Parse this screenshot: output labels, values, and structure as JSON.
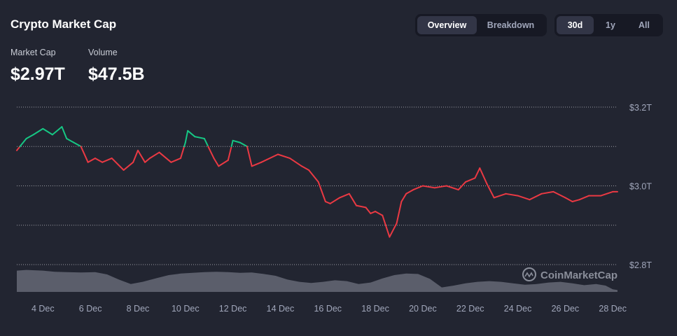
{
  "header": {
    "title": "Crypto Market Cap",
    "view_tabs": [
      {
        "label": "Overview",
        "active": true
      },
      {
        "label": "Breakdown",
        "active": false
      }
    ],
    "range_tabs": [
      {
        "label": "30d",
        "active": true
      },
      {
        "label": "1y",
        "active": false
      },
      {
        "label": "All",
        "active": false
      }
    ]
  },
  "stats": {
    "market_cap_label": "Market Cap",
    "market_cap_value": "$2.97T",
    "volume_label": "Volume",
    "volume_value": "$47.5B"
  },
  "watermark": "CoinMarketCap",
  "colors": {
    "background": "#222531",
    "up": "#16c784",
    "down": "#ea3943",
    "volume": "#8a8e9a",
    "grid": "#ffffff"
  },
  "chart_data": {
    "type": "line",
    "xlabel": "",
    "ylabel": "",
    "x_tick_labels": [
      "4 Dec",
      "6 Dec",
      "8 Dec",
      "10 Dec",
      "12 Dec",
      "14 Dec",
      "16 Dec",
      "18 Dec",
      "20 Dec",
      "22 Dec",
      "24 Dec",
      "26 Dec",
      "28 Dec"
    ],
    "y_tick_labels": [
      "$3.2T",
      "$3.0T",
      "$2.8T"
    ],
    "y_ticks": [
      3.2,
      3.0,
      2.8
    ],
    "xlim": [
      2.9,
      28.2
    ],
    "ylim": [
      2.8,
      3.2
    ],
    "baseline": 3.1,
    "y_unit": "T USD",
    "grid": "dotted horizontal",
    "series": [
      {
        "x": [
          2.9,
          3.3,
          3.6,
          4.0,
          4.4,
          4.8,
          5.0,
          5.3,
          5.6,
          5.9,
          6.2,
          6.5,
          6.9,
          7.4,
          7.8,
          8.0,
          8.1,
          8.3,
          8.5,
          8.9,
          9.4,
          9.8,
          10.0,
          10.1,
          10.4,
          10.8,
          11.2,
          11.4,
          11.8,
          12.0,
          12.3,
          12.6,
          12.8,
          13.2,
          13.9,
          14.4,
          14.9,
          15.2,
          15.6,
          15.9,
          16.1,
          16.5,
          16.9,
          17.2,
          17.6,
          17.8,
          18.0,
          18.3,
          18.6,
          18.9,
          19.1,
          19.3,
          19.6,
          20.0,
          20.5,
          21.0,
          21.5,
          21.8,
          22.2,
          22.4,
          22.7,
          23.0,
          23.5,
          24.0,
          24.5,
          25.0,
          25.5,
          26.0,
          26.3,
          26.6,
          27.0,
          27.5,
          28.0,
          28.2
        ],
        "y": [
          3.09,
          3.12,
          3.13,
          3.145,
          3.13,
          3.15,
          3.12,
          3.11,
          3.1,
          3.06,
          3.07,
          3.06,
          3.07,
          3.04,
          3.06,
          3.09,
          3.08,
          3.06,
          3.07,
          3.085,
          3.06,
          3.07,
          3.11,
          3.14,
          3.125,
          3.12,
          3.07,
          3.05,
          3.065,
          3.115,
          3.11,
          3.1,
          3.05,
          3.06,
          3.08,
          3.07,
          3.05,
          3.04,
          3.01,
          2.96,
          2.955,
          2.97,
          2.98,
          2.95,
          2.945,
          2.93,
          2.935,
          2.925,
          2.87,
          2.905,
          2.96,
          2.98,
          2.99,
          3.0,
          2.995,
          3.0,
          2.99,
          3.01,
          3.02,
          3.045,
          3.005,
          2.97,
          2.98,
          2.975,
          2.965,
          2.98,
          2.985,
          2.97,
          2.96,
          2.965,
          2.975,
          2.975,
          2.985,
          2.985
        ]
      }
    ],
    "volume_series": {
      "x": [
        2.9,
        3.3,
        4.0,
        4.5,
        5.0,
        5.6,
        6.2,
        6.7,
        7.2,
        7.7,
        8.2,
        8.8,
        9.3,
        9.8,
        10.3,
        10.8,
        11.3,
        11.8,
        12.3,
        12.8,
        13.3,
        13.8,
        14.3,
        14.8,
        15.3,
        15.8,
        16.3,
        16.8,
        17.3,
        17.8,
        18.3,
        18.8,
        19.3,
        19.8,
        20.3,
        20.8,
        21.3,
        21.8,
        22.3,
        22.8,
        23.3,
        23.8,
        24.3,
        24.8,
        25.3,
        25.8,
        26.3,
        26.8,
        27.3,
        27.7,
        28.0,
        28.2
      ],
      "relative_values": [
        0.95,
        0.98,
        0.95,
        0.9,
        0.88,
        0.87,
        0.88,
        0.78,
        0.55,
        0.35,
        0.45,
        0.62,
        0.75,
        0.82,
        0.85,
        0.88,
        0.9,
        0.88,
        0.85,
        0.87,
        0.8,
        0.72,
        0.55,
        0.45,
        0.4,
        0.45,
        0.52,
        0.48,
        0.35,
        0.42,
        0.6,
        0.75,
        0.82,
        0.8,
        0.58,
        0.2,
        0.28,
        0.38,
        0.45,
        0.48,
        0.45,
        0.38,
        0.32,
        0.35,
        0.42,
        0.45,
        0.38,
        0.3,
        0.35,
        0.28,
        0.12,
        0.08
      ]
    }
  }
}
